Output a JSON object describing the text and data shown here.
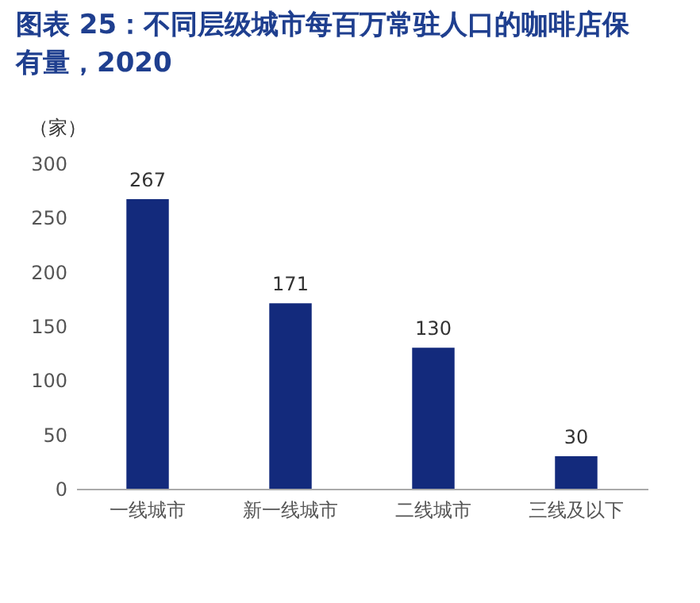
{
  "chart_data": {
    "type": "bar",
    "title": "图表 25：不同层级城市每百万常驻人口的咖啡店保有量，2020",
    "ylabel": "（家）",
    "categories": [
      "一线城市",
      "新一线城市",
      "二线城市",
      "三线及以下"
    ],
    "values": [
      267,
      171,
      130,
      30
    ],
    "color": "#132a7c",
    "ylim": [
      0,
      300
    ],
    "yticks": [
      0,
      50,
      100,
      150,
      200,
      250,
      300
    ],
    "grid": false,
    "data_labels": true
  }
}
